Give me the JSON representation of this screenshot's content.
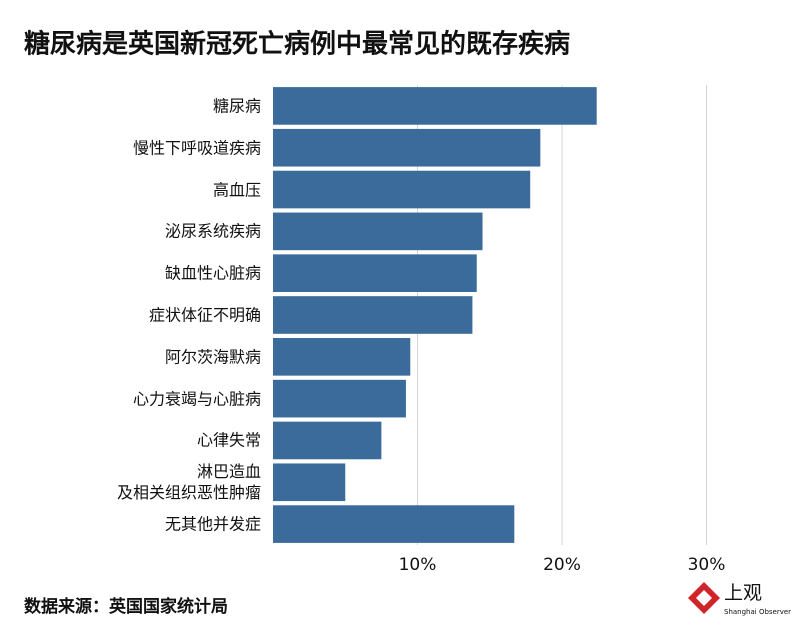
{
  "chart_data": {
    "type": "bar",
    "orientation": "horizontal",
    "title": "糖尿病是英国新冠死亡病例中最常见的既存疾病",
    "categories": [
      "糖尿病",
      "慢性下呼吸道疾病",
      "高血压",
      "泌尿系统疾病",
      "缺血性心脏病",
      "症状体征不明确",
      "阿尔茨海默病",
      "心力衰竭与心脏病",
      "心律失常",
      "淋巴造血\n及相关组织恶性肿瘤",
      "无其他并发症"
    ],
    "values": [
      22.4,
      18.5,
      17.8,
      14.5,
      14.1,
      13.8,
      9.5,
      9.2,
      7.5,
      5.0,
      16.7
    ],
    "color": "#3a6b9b",
    "xlim": [
      0,
      35
    ],
    "xticks": [
      {
        "value": 10,
        "label": "10%"
      },
      {
        "value": 20,
        "label": "20%"
      },
      {
        "value": 30,
        "label": "30%"
      }
    ],
    "grid": true,
    "source": "数据来源：英国国家统计局"
  },
  "logo": {
    "name": "上观",
    "subtitle": "Shanghai Observer"
  }
}
